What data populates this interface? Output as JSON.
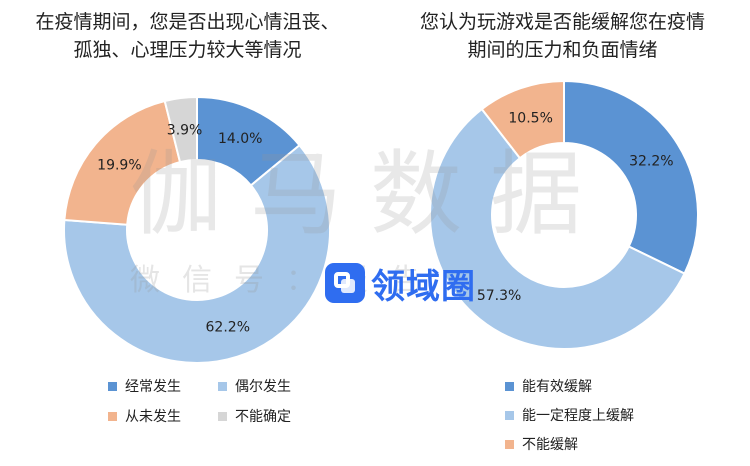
{
  "chart_data": [
    {
      "type": "pie",
      "donut": true,
      "title_lines": [
        "在疫情期间，您是否出现心情沮丧、",
        "孤独、心理压力较大等情况"
      ],
      "slices": [
        {
          "label": "经常发生",
          "value": 14.0,
          "display": "14.0%",
          "color": "#5b93d3"
        },
        {
          "label": "偶尔发生",
          "value": 62.2,
          "display": "62.2%",
          "color": "#a6c7e9"
        },
        {
          "label": "从未发生",
          "value": 19.9,
          "display": "19.9%",
          "color": "#f2b48e"
        },
        {
          "label": "不能确定",
          "value": 3.9,
          "display": "3.9%",
          "color": "#d6d6d6"
        }
      ],
      "legend": [
        "经常发生",
        "偶尔发生",
        "从未发生",
        "不能确定"
      ],
      "legend_position": "bottom"
    },
    {
      "type": "pie",
      "donut": true,
      "title_lines": [
        "您认为玩游戏是否能缓解您在疫情",
        "期间的压力和负面情绪"
      ],
      "slices": [
        {
          "label": "能有效缓解",
          "value": 32.2,
          "display": "32.2%",
          "color": "#5b93d3"
        },
        {
          "label": "能一定程度上缓解",
          "value": 57.3,
          "display": "57.3%",
          "color": "#a6c7e9"
        },
        {
          "label": "不能缓解",
          "value": 10.5,
          "display": "10.5%",
          "color": "#f2b48e"
        }
      ],
      "legend": [
        "能有效缓解",
        "能一定程度上缓解",
        "不能缓解"
      ],
      "legend_position": "bottom"
    }
  ],
  "watermark": {
    "main": "伽马数据",
    "sub": "微信号：报告"
  },
  "logo": {
    "text": "领域圈"
  }
}
